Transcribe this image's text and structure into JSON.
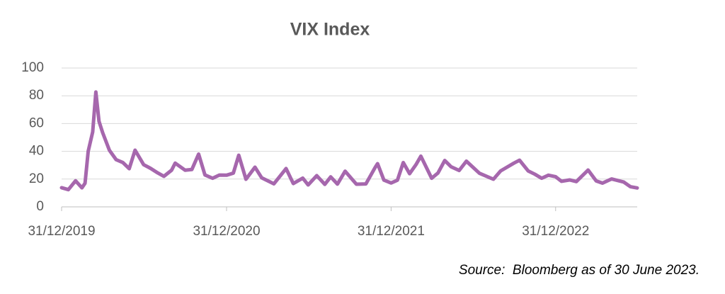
{
  "chart_data": {
    "type": "line",
    "title": "VIX Index",
    "source": "Source:  Bloomberg as of 30 June 2023.",
    "x": [
      "31/12/2019",
      "15/01/2020",
      "31/01/2020",
      "14/02/2020",
      "21/02/2020",
      "28/02/2020",
      "09/03/2020",
      "16/03/2020",
      "23/03/2020",
      "31/03/2020",
      "15/04/2020",
      "30/04/2020",
      "15/05/2020",
      "29/05/2020",
      "11/06/2020",
      "30/06/2020",
      "15/07/2020",
      "31/07/2020",
      "14/08/2020",
      "31/08/2020",
      "08/09/2020",
      "30/09/2020",
      "15/10/2020",
      "30/10/2020",
      "13/11/2020",
      "30/11/2020",
      "15/12/2020",
      "31/12/2020",
      "15/01/2021",
      "27/01/2021",
      "12/02/2021",
      "04/03/2021",
      "19/03/2021",
      "15/04/2021",
      "12/05/2021",
      "28/05/2021",
      "18/06/2021",
      "30/06/2021",
      "19/07/2021",
      "06/08/2021",
      "19/08/2021",
      "03/09/2021",
      "20/09/2021",
      "15/10/2021",
      "05/11/2021",
      "26/11/2021",
      "01/12/2021",
      "15/12/2021",
      "31/12/2021",
      "14/01/2022",
      "27/01/2022",
      "10/02/2022",
      "24/02/2022",
      "07/03/2022",
      "31/03/2022",
      "14/04/2022",
      "29/04/2022",
      "13/05/2022",
      "31/05/2022",
      "16/06/2022",
      "30/06/2022",
      "15/07/2022",
      "15/08/2022",
      "31/08/2022",
      "30/09/2022",
      "12/10/2022",
      "31/10/2022",
      "15/11/2022",
      "30/11/2022",
      "15/12/2022",
      "31/12/2022",
      "13/01/2023",
      "31/01/2023",
      "15/02/2023",
      "13/03/2023",
      "31/03/2023",
      "14/04/2023",
      "04/05/2023",
      "31/05/2023",
      "15/06/2023",
      "30/06/2023"
    ],
    "series": [
      {
        "name": "VIX Index",
        "color": "#a667ad",
        "values": [
          13.8,
          12.4,
          18.8,
          13.7,
          17,
          40,
          54,
          82.7,
          61.6,
          53.5,
          40.8,
          34,
          31.9,
          27.5,
          40.8,
          30.4,
          27.8,
          24.5,
          22,
          26.4,
          31.5,
          26.4,
          26.9,
          38,
          23,
          20.6,
          22.9,
          22.8,
          24.3,
          37.2,
          19.9,
          28.6,
          20.9,
          16.6,
          27.6,
          16.8,
          20.7,
          15.8,
          22.5,
          16.2,
          21.6,
          16.4,
          25.7,
          16.3,
          16.5,
          28.6,
          31.1,
          19.3,
          17.2,
          19.2,
          31.9,
          23.9,
          30.3,
          36.5,
          20.6,
          24.4,
          33.4,
          28.9,
          26.2,
          32.9,
          28.7,
          24.2,
          19.9,
          25.9,
          31.6,
          33.6,
          25.9,
          23.5,
          20.6,
          22.8,
          21.7,
          18.4,
          19.4,
          18.2,
          26.5,
          18.7,
          17.1,
          20.1,
          17.9,
          14.5,
          13.6
        ]
      }
    ],
    "xlim": [
      "31/12/2019",
      "30/06/2023"
    ],
    "xticks": [
      "31/12/2019",
      "31/12/2020",
      "31/12/2021",
      "31/12/2022"
    ],
    "ylim": [
      0,
      100
    ],
    "yticks": [
      0,
      20,
      40,
      60,
      80,
      100
    ],
    "grid": true
  }
}
